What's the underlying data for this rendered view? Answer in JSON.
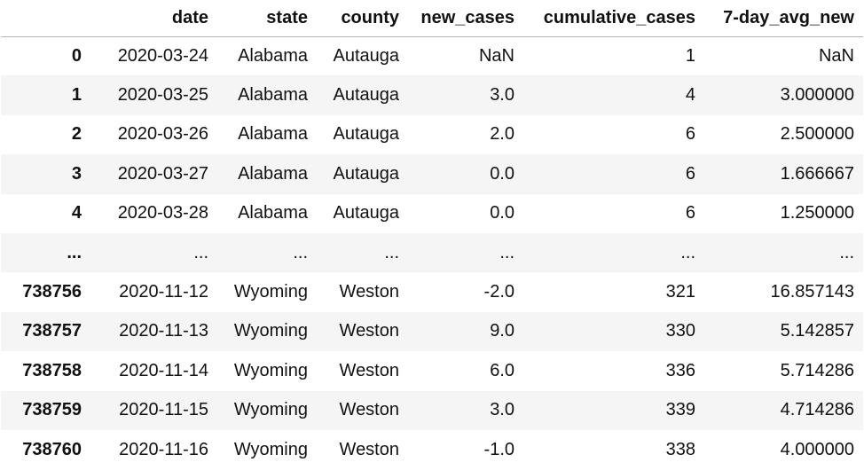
{
  "table": {
    "columns": [
      "date",
      "state",
      "county",
      "new_cases",
      "cumulative_cases",
      "7-day_avg_new"
    ],
    "rows": [
      {
        "index": "0",
        "cells": [
          "2020-03-24",
          "Alabama",
          "Autauga",
          "NaN",
          "1",
          "NaN"
        ]
      },
      {
        "index": "1",
        "cells": [
          "2020-03-25",
          "Alabama",
          "Autauga",
          "3.0",
          "4",
          "3.000000"
        ]
      },
      {
        "index": "2",
        "cells": [
          "2020-03-26",
          "Alabama",
          "Autauga",
          "2.0",
          "6",
          "2.500000"
        ]
      },
      {
        "index": "3",
        "cells": [
          "2020-03-27",
          "Alabama",
          "Autauga",
          "0.0",
          "6",
          "1.666667"
        ]
      },
      {
        "index": "4",
        "cells": [
          "2020-03-28",
          "Alabama",
          "Autauga",
          "0.0",
          "6",
          "1.250000"
        ]
      },
      {
        "index": "...",
        "cells": [
          "...",
          "...",
          "...",
          "...",
          "...",
          "..."
        ]
      },
      {
        "index": "738756",
        "cells": [
          "2020-11-12",
          "Wyoming",
          "Weston",
          "-2.0",
          "321",
          "16.857143"
        ]
      },
      {
        "index": "738757",
        "cells": [
          "2020-11-13",
          "Wyoming",
          "Weston",
          "9.0",
          "330",
          "5.142857"
        ]
      },
      {
        "index": "738758",
        "cells": [
          "2020-11-14",
          "Wyoming",
          "Weston",
          "6.0",
          "336",
          "5.714286"
        ]
      },
      {
        "index": "738759",
        "cells": [
          "2020-11-15",
          "Wyoming",
          "Weston",
          "3.0",
          "339",
          "4.714286"
        ]
      },
      {
        "index": "738760",
        "cells": [
          "2020-11-16",
          "Wyoming",
          "Weston",
          "-1.0",
          "338",
          "4.000000"
        ]
      }
    ]
  }
}
